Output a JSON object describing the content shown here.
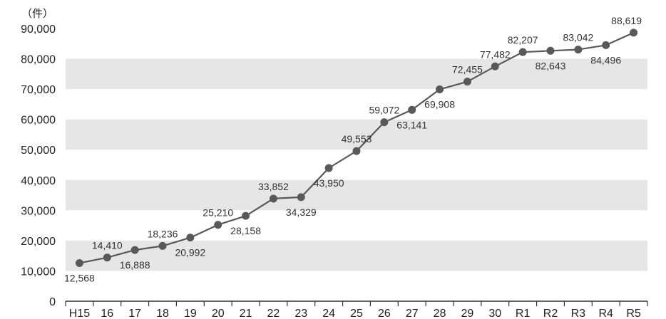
{
  "chart_data": {
    "type": "line",
    "unit_label": "（件）",
    "categories": [
      "H15",
      "16",
      "17",
      "18",
      "19",
      "20",
      "21",
      "22",
      "23",
      "24",
      "25",
      "26",
      "27",
      "28",
      "29",
      "30",
      "R1",
      "R2",
      "R3",
      "R4",
      "R5"
    ],
    "values": [
      12568,
      14410,
      16888,
      18236,
      20992,
      25210,
      28158,
      33852,
      34329,
      43950,
      49553,
      59072,
      63141,
      69908,
      72455,
      77482,
      82207,
      82643,
      83042,
      84496,
      88619
    ],
    "value_labels": [
      "12,568",
      "14,410",
      "16,888",
      "18,236",
      "20,992",
      "25,210",
      "28,158",
      "33,852",
      "34,329",
      "43,950",
      "49,553",
      "59,072",
      "63,141",
      "69,908",
      "72,455",
      "77,482",
      "82,207",
      "82,643",
      "83,042",
      "84,496",
      "88,619"
    ],
    "label_positions": [
      "below",
      "above",
      "below",
      "above",
      "below",
      "above",
      "below",
      "above",
      "below",
      "below",
      "above",
      "above",
      "below",
      "below",
      "above",
      "above",
      "above",
      "below",
      "above",
      "below",
      "above"
    ],
    "y_ticks": [
      0,
      10000,
      20000,
      30000,
      40000,
      50000,
      60000,
      70000,
      80000,
      90000
    ],
    "y_tick_labels": [
      "0",
      "10,000",
      "20,000",
      "30,000",
      "40,000",
      "50,000",
      "60,000",
      "70,000",
      "80,000",
      "90,000"
    ],
    "ylim": [
      0,
      90000
    ],
    "grid": "alternating horizontal bands",
    "colors": {
      "line": "#595959",
      "marker": "#595959",
      "band": "#e6e6e6",
      "axis": "#333333"
    }
  }
}
